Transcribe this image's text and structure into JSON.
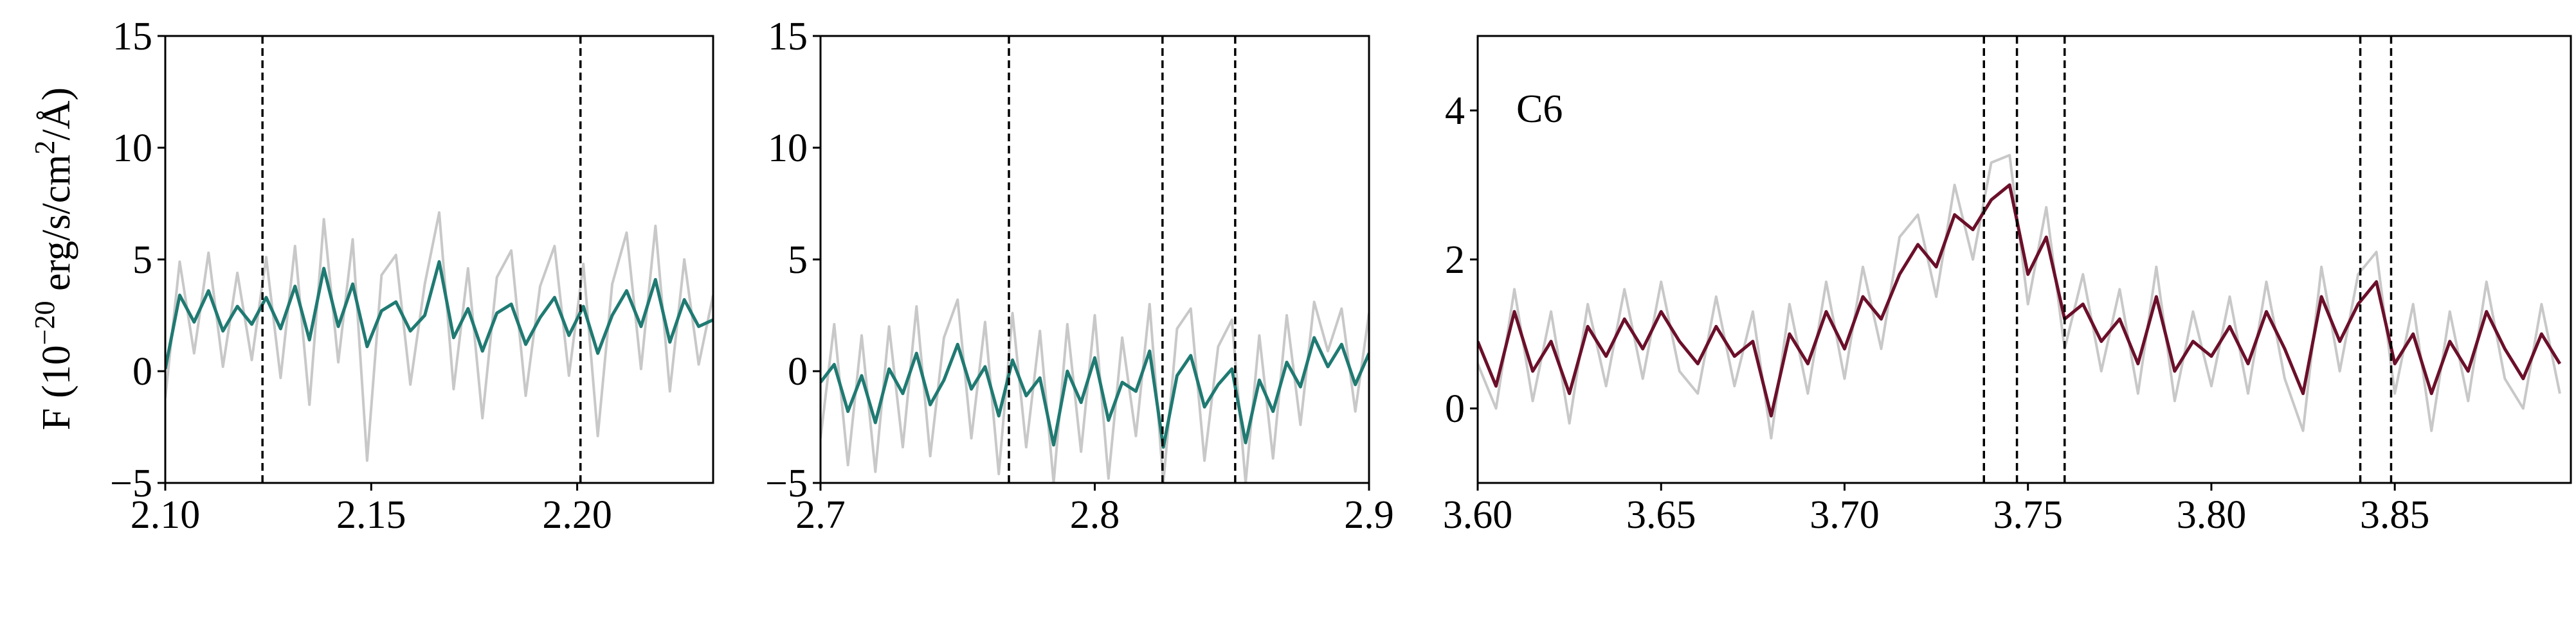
{
  "chart_data": [
    {
      "type": "line",
      "ylabel_parts": [
        "F (10",
        "−20",
        " erg/s/cm",
        "2",
        "/Å)"
      ],
      "xlim": [
        2.1,
        2.233
      ],
      "ylim": [
        -5,
        15
      ],
      "xticks": [
        {
          "value": 2.1,
          "label": "2.10"
        },
        {
          "value": 2.15,
          "label": "2.15"
        },
        {
          "value": 2.2,
          "label": "2.20"
        }
      ],
      "yticks": [
        {
          "value": -5,
          "label": "−5"
        },
        0,
        5,
        10,
        15
      ],
      "vlines": [
        2.1236,
        2.2008
      ],
      "x": [
        2.1,
        2.1035,
        2.107,
        2.1105,
        2.114,
        2.1175,
        2.121,
        2.1245,
        2.128,
        2.1315,
        2.135,
        2.1385,
        2.142,
        2.1455,
        2.149,
        2.1525,
        2.156,
        2.1595,
        2.163,
        2.1665,
        2.17,
        2.1735,
        2.177,
        2.1805,
        2.184,
        2.1875,
        2.191,
        2.1945,
        2.198,
        2.2015,
        2.205,
        2.2085,
        2.212,
        2.2155,
        2.219,
        2.2225,
        2.226,
        2.2295,
        2.233
      ],
      "series": [
        {
          "color": "#c8c8c8",
          "values": [
            -1.2,
            4.9,
            0.8,
            5.3,
            0.2,
            4.4,
            0.5,
            5.1,
            -0.3,
            5.6,
            -1.5,
            6.8,
            0.4,
            5.9,
            -4.0,
            4.3,
            5.2,
            -0.6,
            3.9,
            7.1,
            -0.8,
            4.6,
            -2.1,
            4.2,
            5.4,
            -1.1,
            3.8,
            5.6,
            -0.2,
            4.8,
            -2.9,
            3.9,
            6.2,
            0.1,
            6.5,
            -0.9,
            5.0,
            0.3,
            3.4
          ]
        },
        {
          "color": "#1f7a72",
          "values": [
            0.1,
            3.4,
            2.2,
            3.6,
            1.8,
            2.9,
            2.1,
            3.3,
            1.9,
            3.8,
            1.4,
            4.6,
            2.0,
            3.9,
            1.1,
            2.7,
            3.1,
            1.8,
            2.5,
            4.9,
            1.5,
            2.8,
            0.9,
            2.6,
            3.0,
            1.2,
            2.4,
            3.3,
            1.6,
            2.9,
            0.8,
            2.5,
            3.6,
            2.0,
            4.1,
            1.3,
            3.2,
            2.0,
            2.3
          ]
        }
      ]
    },
    {
      "type": "line",
      "xlim": [
        2.7,
        2.9
      ],
      "ylim": [
        -5,
        15
      ],
      "xticks": [
        2.7,
        2.8,
        2.9
      ],
      "yticks": [
        {
          "value": -5,
          "label": "−5"
        },
        0,
        5,
        10,
        15
      ],
      "vlines": [
        2.7687,
        2.8247,
        2.8512
      ],
      "x": [
        2.7,
        2.705,
        2.71,
        2.715,
        2.72,
        2.725,
        2.73,
        2.735,
        2.74,
        2.745,
        2.75,
        2.755,
        2.76,
        2.765,
        2.77,
        2.775,
        2.78,
        2.785,
        2.79,
        2.795,
        2.8,
        2.805,
        2.81,
        2.815,
        2.82,
        2.825,
        2.83,
        2.835,
        2.84,
        2.845,
        2.85,
        2.855,
        2.86,
        2.865,
        2.87,
        2.875,
        2.88,
        2.885,
        2.89,
        2.895,
        2.9
      ],
      "series": [
        {
          "color": "#c8c8c8",
          "values": [
            -3.0,
            2.1,
            -4.2,
            1.6,
            -4.5,
            2.0,
            -3.4,
            2.9,
            -3.8,
            1.5,
            3.2,
            -3.0,
            2.2,
            -4.6,
            2.6,
            -3.4,
            1.8,
            -5.0,
            2.1,
            -3.6,
            2.5,
            -4.8,
            1.5,
            -2.9,
            3.0,
            -5.0,
            1.9,
            2.8,
            -4.0,
            1.1,
            2.3,
            -5.0,
            1.6,
            -3.9,
            2.5,
            -2.4,
            3.1,
            0.9,
            2.8,
            -1.8,
            2.6
          ]
        },
        {
          "color": "#1f7a72",
          "values": [
            -0.5,
            0.3,
            -1.8,
            -0.2,
            -2.3,
            0.1,
            -1.0,
            0.8,
            -1.5,
            -0.4,
            1.2,
            -0.8,
            0.2,
            -2.0,
            0.5,
            -1.1,
            -0.3,
            -3.3,
            0.0,
            -1.4,
            0.6,
            -2.2,
            -0.5,
            -0.9,
            0.9,
            -3.4,
            -0.2,
            0.7,
            -1.6,
            -0.6,
            0.1,
            -3.2,
            -0.4,
            -1.8,
            0.4,
            -0.7,
            1.5,
            0.2,
            1.2,
            -0.6,
            0.8
          ]
        }
      ]
    },
    {
      "type": "line",
      "annotation": "C6",
      "xlim": [
        3.6,
        3.898
      ],
      "ylim": [
        -1,
        5
      ],
      "xticks": [
        {
          "value": 3.6,
          "label": "3.60"
        },
        3.65,
        {
          "value": 3.7,
          "label": "3.70"
        },
        3.75,
        {
          "value": 3.8,
          "label": "3.80"
        },
        3.85
      ],
      "yticks": [
        0,
        2,
        4
      ],
      "vlines": [
        3.738,
        3.747,
        3.76,
        3.8406,
        3.849
      ],
      "x": [
        3.6,
        3.605,
        3.61,
        3.615,
        3.62,
        3.625,
        3.63,
        3.635,
        3.64,
        3.645,
        3.65,
        3.655,
        3.66,
        3.665,
        3.67,
        3.675,
        3.68,
        3.685,
        3.69,
        3.695,
        3.7,
        3.705,
        3.71,
        3.715,
        3.72,
        3.725,
        3.73,
        3.735,
        3.74,
        3.745,
        3.75,
        3.755,
        3.76,
        3.765,
        3.77,
        3.775,
        3.78,
        3.785,
        3.79,
        3.795,
        3.8,
        3.805,
        3.81,
        3.815,
        3.82,
        3.825,
        3.83,
        3.835,
        3.84,
        3.845,
        3.85,
        3.855,
        3.86,
        3.865,
        3.87,
        3.875,
        3.88,
        3.885,
        3.89,
        3.895
      ],
      "series": [
        {
          "color": "#c8c8c8",
          "values": [
            0.6,
            0.0,
            1.6,
            0.1,
            1.3,
            -0.2,
            1.4,
            0.3,
            1.6,
            0.4,
            1.7,
            0.5,
            0.2,
            1.5,
            0.3,
            1.3,
            -0.4,
            1.4,
            0.2,
            1.7,
            0.4,
            1.9,
            0.8,
            2.3,
            2.6,
            1.5,
            3.0,
            2.0,
            3.3,
            3.4,
            1.4,
            2.7,
            0.8,
            1.8,
            0.5,
            1.6,
            0.2,
            1.9,
            0.1,
            1.3,
            0.3,
            1.5,
            0.2,
            1.7,
            0.4,
            -0.3,
            1.9,
            0.5,
            1.8,
            2.1,
            0.2,
            1.4,
            -0.3,
            1.3,
            0.1,
            1.7,
            0.4,
            0.0,
            1.4,
            0.2
          ]
        },
        {
          "color": "#6b0f2a",
          "values": [
            0.9,
            0.3,
            1.3,
            0.5,
            0.9,
            0.2,
            1.1,
            0.7,
            1.2,
            0.8,
            1.3,
            0.9,
            0.6,
            1.1,
            0.7,
            0.9,
            -0.1,
            1.0,
            0.6,
            1.3,
            0.8,
            1.5,
            1.2,
            1.8,
            2.2,
            1.9,
            2.6,
            2.4,
            2.8,
            3.0,
            1.8,
            2.3,
            1.2,
            1.4,
            0.9,
            1.2,
            0.6,
            1.5,
            0.5,
            0.9,
            0.7,
            1.1,
            0.6,
            1.3,
            0.8,
            0.2,
            1.5,
            0.9,
            1.4,
            1.7,
            0.6,
            1.0,
            0.2,
            0.9,
            0.5,
            1.3,
            0.8,
            0.4,
            1.0,
            0.6
          ]
        }
      ]
    }
  ]
}
